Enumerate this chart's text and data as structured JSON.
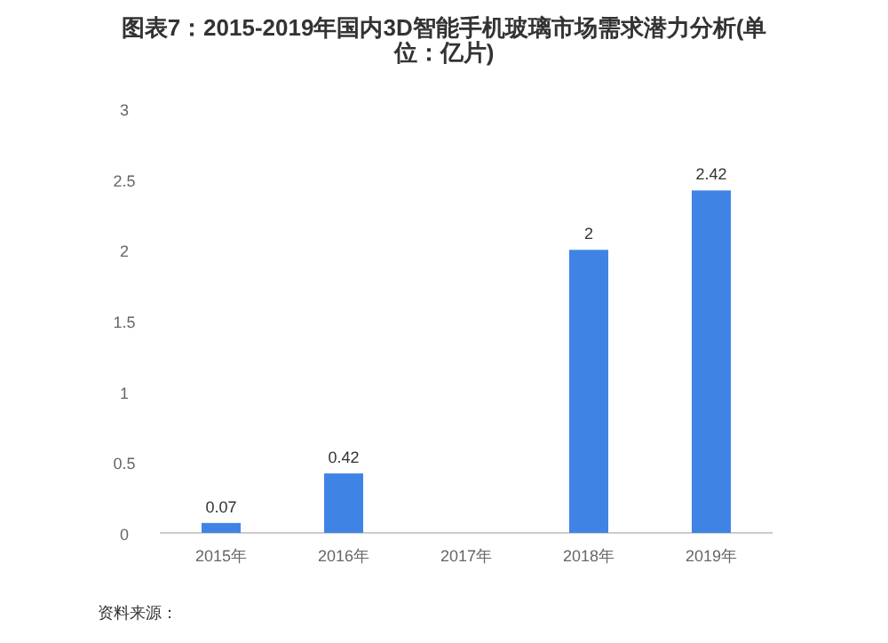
{
  "chart_data": {
    "type": "bar",
    "title": "图表7：2015-2019年国内3D智能手机玻璃市场需求潜力分析(单位：亿片)",
    "categories": [
      "2015年",
      "2016年",
      "2017年",
      "2018年",
      "2019年"
    ],
    "values": [
      0.07,
      0.42,
      null,
      2,
      2.42
    ],
    "value_labels": [
      "0.07",
      "0.42",
      null,
      "2",
      "2.42"
    ],
    "color": "#3f84e5",
    "ylim": [
      0,
      3
    ],
    "yticks": [
      0,
      0.5,
      1,
      1.5,
      2,
      2.5,
      3
    ],
    "grid": false,
    "annotations": [
      "资料来源："
    ]
  }
}
